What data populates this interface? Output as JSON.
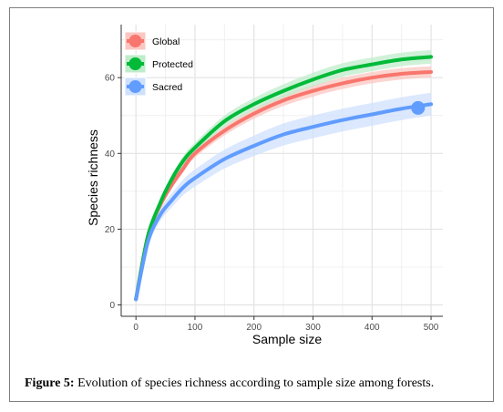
{
  "chart_data": {
    "type": "line",
    "xlabel": "Sample size",
    "ylabel": "Species richness",
    "xlim": [
      -25,
      520
    ],
    "ylim": [
      -3,
      74
    ],
    "x_ticks": [
      0,
      100,
      200,
      300,
      400,
      500
    ],
    "y_ticks": [
      0,
      20,
      40,
      60
    ],
    "grid": true,
    "legend_position": "top-left",
    "x": [
      0,
      20,
      40,
      60,
      80,
      100,
      150,
      200,
      250,
      300,
      350,
      400,
      450,
      500
    ],
    "series": [
      {
        "name": "Global",
        "color": "#f8766d",
        "band_color": "#fbc7c2",
        "values": [
          1.5,
          18,
          26,
          31.5,
          36,
          40,
          46,
          50.5,
          54,
          56.5,
          58.5,
          60,
          61,
          61.5
        ],
        "band": 1.5
      },
      {
        "name": "Protected",
        "color": "#00ba38",
        "band_color": "#bfeccb",
        "values": [
          1.5,
          18,
          26.5,
          33,
          38,
          41.5,
          48.5,
          53,
          56.5,
          59.5,
          62,
          63.5,
          64.8,
          65.5
        ],
        "band": 1.8
      },
      {
        "name": "Sacred",
        "color": "#619cff",
        "band_color": "#cfe0fd",
        "values": [
          1.5,
          16.5,
          23.5,
          27.5,
          31,
          33.5,
          38.5,
          42,
          45,
          47,
          48.8,
          50.3,
          51.8,
          53
        ],
        "band": 3,
        "end_x": 478,
        "end_y": 52
      }
    ]
  },
  "figure_label": "Figure 5:",
  "caption_text": " Evolution of species richness according to sample size among forests."
}
